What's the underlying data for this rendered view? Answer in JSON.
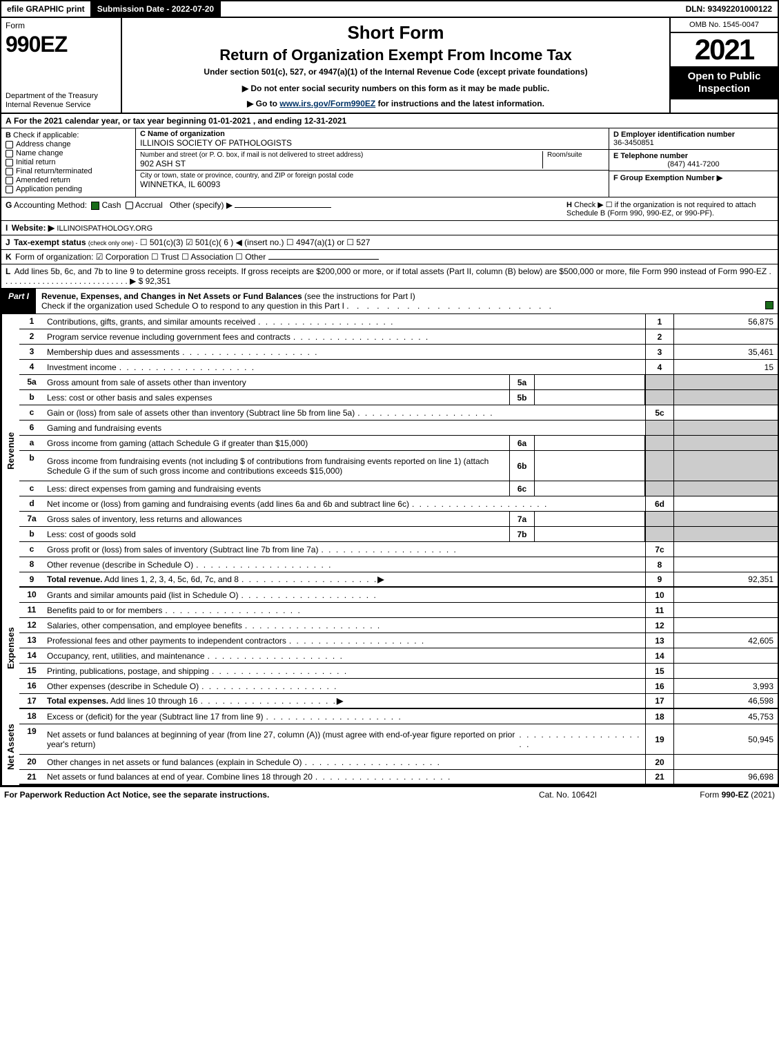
{
  "topbar": {
    "efile": "efile GRAPHIC print",
    "submission": "Submission Date - 2022-07-20",
    "dln": "DLN: 93492201000122"
  },
  "header": {
    "form_label": "Form",
    "form_number": "990EZ",
    "dept": "Department of the Treasury\nInternal Revenue Service",
    "short_form": "Short Form",
    "title": "Return of Organization Exempt From Income Tax",
    "subtitle": "Under section 501(c), 527, or 4947(a)(1) of the Internal Revenue Code (except private foundations)",
    "arrow1": "▶ Do not enter social security numbers on this form as it may be made public.",
    "arrow2_pre": "▶ Go to ",
    "arrow2_link": "www.irs.gov/Form990EZ",
    "arrow2_post": " for instructions and the latest information.",
    "omb": "OMB No. 1545-0047",
    "year": "2021",
    "open": "Open to Public Inspection"
  },
  "row_a": {
    "letter": "A",
    "text": "For the 2021 calendar year, or tax year beginning 01-01-2021 , and ending 12-31-2021"
  },
  "section_b": {
    "letter": "B",
    "label": "Check if applicable:",
    "options": [
      "Address change",
      "Name change",
      "Initial return",
      "Final return/terminated",
      "Amended return",
      "Application pending"
    ]
  },
  "section_c": {
    "c_label": "C Name of organization",
    "name": "ILLINOIS SOCIETY OF PATHOLOGISTS",
    "addr_label": "Number and street (or P. O. box, if mail is not delivered to street address)",
    "room_label": "Room/suite",
    "street": "902 ASH ST",
    "city_label": "City or town, state or province, country, and ZIP or foreign postal code",
    "city": "WINNETKA, IL  60093"
  },
  "section_d": {
    "d_label": "D Employer identification number",
    "ein": "36-3450851",
    "e_label": "E Telephone number",
    "phone": "(847) 441-7200",
    "f_label": "F Group Exemption Number   ▶"
  },
  "row_g": {
    "letter": "G",
    "label": "Accounting Method:",
    "cash": "Cash",
    "accrual": "Accrual",
    "other": "Other (specify) ▶"
  },
  "row_h": {
    "letter": "H",
    "text": "Check ▶  ☐  if the organization is not required to attach Schedule B (Form 990, 990-EZ, or 990-PF)."
  },
  "row_i": {
    "letter": "I",
    "label": "Website: ▶",
    "value": "ILLINOISPATHOLOGY.ORG"
  },
  "row_j": {
    "letter": "J",
    "label": "Tax-exempt status",
    "small": "(check only one) -",
    "text": "☐ 501(c)(3)  ☑ 501(c)( 6 ) ◀ (insert no.)  ☐ 4947(a)(1) or  ☐ 527"
  },
  "row_k": {
    "letter": "K",
    "label": "Form of organization:",
    "text": "☑ Corporation   ☐ Trust   ☐ Association   ☐ Other"
  },
  "row_l": {
    "letter": "L",
    "text": "Add lines 5b, 6c, and 7b to line 9 to determine gross receipts. If gross receipts are $200,000 or more, or if total assets (Part II, column (B) below) are $500,000 or more, file Form 990 instead of Form 990-EZ  .  .  .  .  .  .  .  .  .  .  .  .  .  .  .  .  .  .  .  .  .  .  .  .  .  .  .  .  ▶ $ 92,351"
  },
  "part1": {
    "tab": "Part I",
    "title": "Revenue, Expenses, and Changes in Net Assets or Fund Balances",
    "sub": "(see the instructions for Part I)",
    "check_text": "Check if the organization used Schedule O to respond to any question in this Part I"
  },
  "sides": {
    "revenue": "Revenue",
    "expenses": "Expenses",
    "netassets": "Net Assets"
  },
  "revenue_lines": [
    {
      "no": "1",
      "desc": "Contributions, gifts, grants, and similar amounts received",
      "box": "1",
      "val": "56,875"
    },
    {
      "no": "2",
      "desc": "Program service revenue including government fees and contracts",
      "box": "2",
      "val": ""
    },
    {
      "no": "3",
      "desc": "Membership dues and assessments",
      "box": "3",
      "val": "35,461"
    },
    {
      "no": "4",
      "desc": "Investment income",
      "box": "4",
      "val": "15"
    },
    {
      "no": "5a",
      "desc": "Gross amount from sale of assets other than inventory",
      "mini": "5a",
      "shade_box": true
    },
    {
      "no": "b",
      "desc": "Less: cost or other basis and sales expenses",
      "mini": "5b",
      "shade_box": true
    },
    {
      "no": "c",
      "desc": "Gain or (loss) from sale of assets other than inventory (Subtract line 5b from line 5a)",
      "box": "5c",
      "val": ""
    },
    {
      "no": "6",
      "desc": "Gaming and fundraising events",
      "shade_both": true
    },
    {
      "no": "a",
      "desc": "Gross income from gaming (attach Schedule G if greater than $15,000)",
      "mini": "6a",
      "shade_box": true
    },
    {
      "no": "b",
      "desc": "Gross income from fundraising events (not including $                      of contributions from fundraising events reported on line 1) (attach Schedule G if the sum of such gross income and contributions exceeds $15,000)",
      "mini": "6b",
      "shade_box": true,
      "tall": true
    },
    {
      "no": "c",
      "desc": "Less: direct expenses from gaming and fundraising events",
      "mini": "6c",
      "shade_box": true
    },
    {
      "no": "d",
      "desc": "Net income or (loss) from gaming and fundraising events (add lines 6a and 6b and subtract line 6c)",
      "box": "6d",
      "val": ""
    },
    {
      "no": "7a",
      "desc": "Gross sales of inventory, less returns and allowances",
      "mini": "7a",
      "shade_box": true
    },
    {
      "no": "b",
      "desc": "Less: cost of goods sold",
      "mini": "7b",
      "shade_box": true
    },
    {
      "no": "c",
      "desc": "Gross profit or (loss) from sales of inventory (Subtract line 7b from line 7a)",
      "box": "7c",
      "val": ""
    },
    {
      "no": "8",
      "desc": "Other revenue (describe in Schedule O)",
      "box": "8",
      "val": ""
    },
    {
      "no": "9",
      "desc": "Total revenue. Add lines 1, 2, 3, 4, 5c, 6d, 7c, and 8",
      "box": "9",
      "val": "92,351",
      "bold": true,
      "arrow": true
    }
  ],
  "expense_lines": [
    {
      "no": "10",
      "desc": "Grants and similar amounts paid (list in Schedule O)",
      "box": "10",
      "val": ""
    },
    {
      "no": "11",
      "desc": "Benefits paid to or for members",
      "box": "11",
      "val": ""
    },
    {
      "no": "12",
      "desc": "Salaries, other compensation, and employee benefits",
      "box": "12",
      "val": ""
    },
    {
      "no": "13",
      "desc": "Professional fees and other payments to independent contractors",
      "box": "13",
      "val": "42,605"
    },
    {
      "no": "14",
      "desc": "Occupancy, rent, utilities, and maintenance",
      "box": "14",
      "val": ""
    },
    {
      "no": "15",
      "desc": "Printing, publications, postage, and shipping",
      "box": "15",
      "val": ""
    },
    {
      "no": "16",
      "desc": "Other expenses (describe in Schedule O)",
      "box": "16",
      "val": "3,993"
    },
    {
      "no": "17",
      "desc": "Total expenses. Add lines 10 through 16",
      "box": "17",
      "val": "46,598",
      "bold": true,
      "arrow": true
    }
  ],
  "netasset_lines": [
    {
      "no": "18",
      "desc": "Excess or (deficit) for the year (Subtract line 17 from line 9)",
      "box": "18",
      "val": "45,753"
    },
    {
      "no": "19",
      "desc": "Net assets or fund balances at beginning of year (from line 27, column (A)) (must agree with end-of-year figure reported on prior year's return)",
      "box": "19",
      "val": "50,945",
      "tall": true
    },
    {
      "no": "20",
      "desc": "Other changes in net assets or fund balances (explain in Schedule O)",
      "box": "20",
      "val": ""
    },
    {
      "no": "21",
      "desc": "Net assets or fund balances at end of year. Combine lines 18 through 20",
      "box": "21",
      "val": "96,698"
    }
  ],
  "footer": {
    "left": "For Paperwork Reduction Act Notice, see the separate instructions.",
    "center": "Cat. No. 10642I",
    "right_pre": "Form ",
    "right_bold": "990-EZ",
    "right_post": " (2021)"
  },
  "colors": {
    "black": "#000000",
    "green_check": "#1a6b1a",
    "shade": "#cccccc",
    "link": "#003366"
  }
}
